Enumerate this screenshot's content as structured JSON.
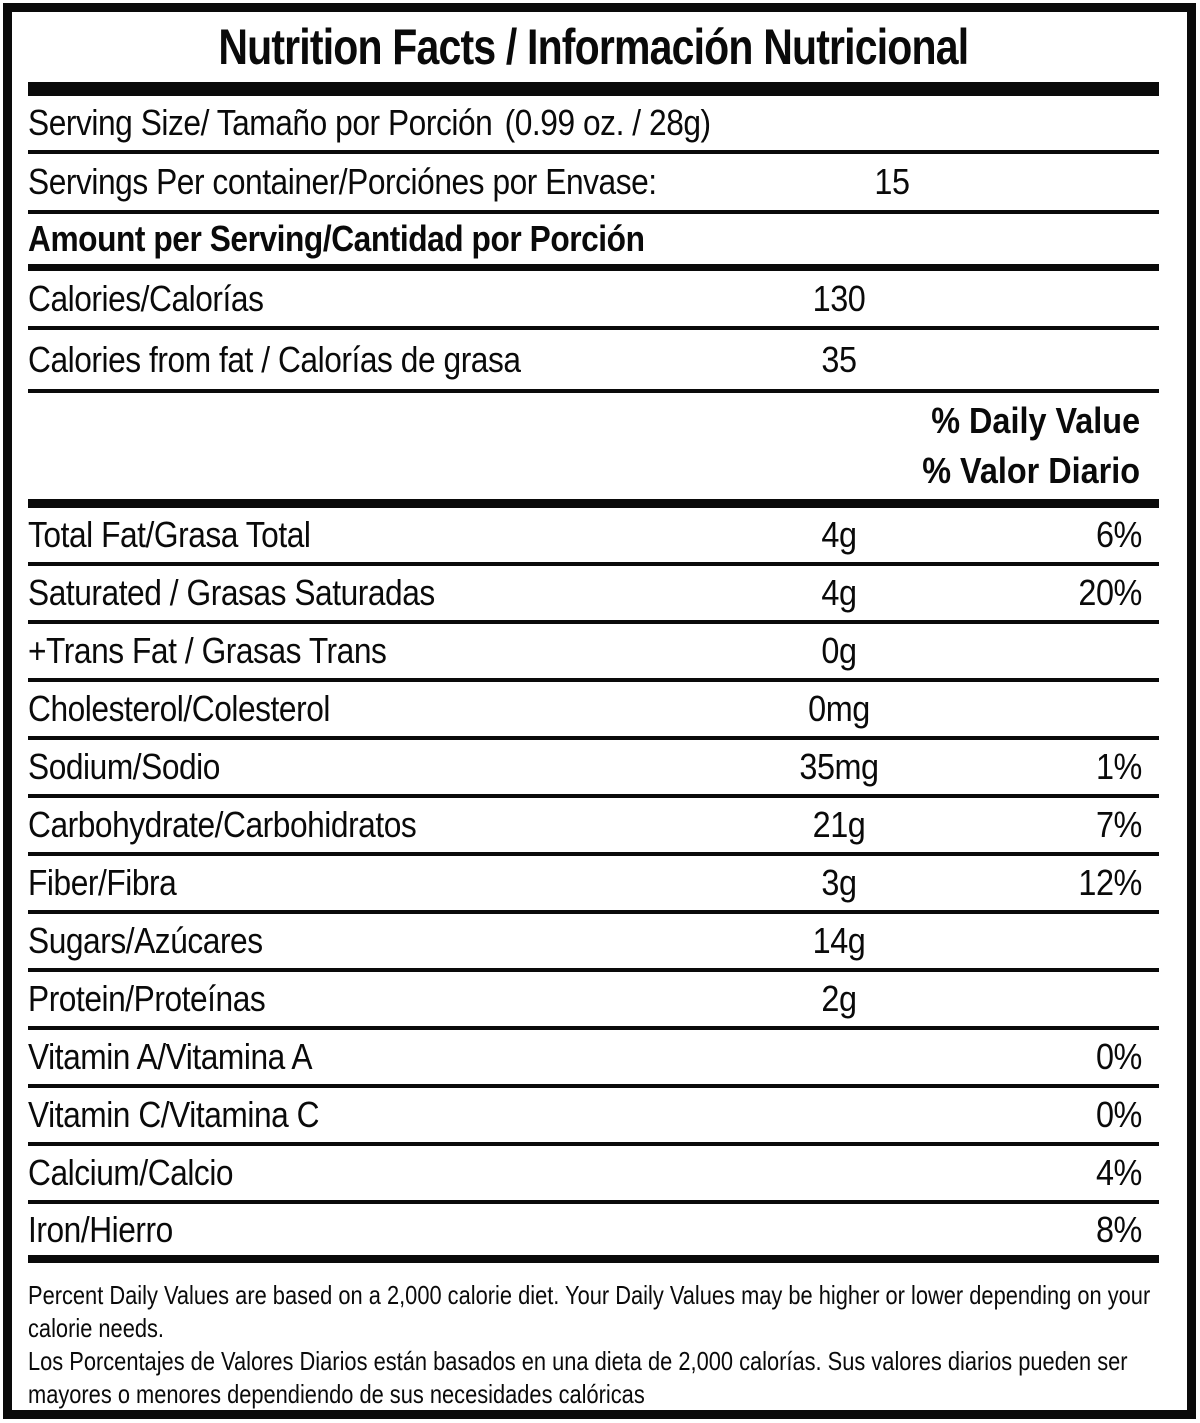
{
  "colors": {
    "ink": "#0a0a0a",
    "paper": "#ffffff"
  },
  "title": "Nutrition Facts / Información Nutricional",
  "serving_size": {
    "label": "Serving Size/ Tamaño por Porción",
    "value": "(0.99 oz. / 28g)"
  },
  "servings_per_container": {
    "label": "Servings Per container/Porciónes por Envase:",
    "value": "15"
  },
  "amount_per_serving": "Amount per Serving/Cantidad por Porción",
  "calories": {
    "label": "Calories/Calorías",
    "value": "130"
  },
  "calories_from_fat": {
    "label": "Calories from fat / Calorías de grasa",
    "value": "35"
  },
  "daily_value_header": {
    "line1": "% Daily Value",
    "line2": "% Valor Diario"
  },
  "nutrients": [
    {
      "label": "Total Fat/Grasa Total",
      "amount": "4g",
      "dv": "6%"
    },
    {
      "label": "Saturated / Grasas Saturadas",
      "amount": "4g",
      "dv": "20%"
    },
    {
      "label": "+Trans Fat / Grasas Trans",
      "amount": "0g",
      "dv": ""
    },
    {
      "label": "Cholesterol/Colesterol",
      "amount": "0mg",
      "dv": ""
    },
    {
      "label": "Sodium/Sodio",
      "amount": "35mg",
      "dv": "1%"
    },
    {
      "label": "Carbohydrate/Carbohidratos",
      "amount": "21g",
      "dv": "7%"
    },
    {
      "label": "Fiber/Fibra",
      "amount": "3g",
      "dv": "12%"
    },
    {
      "label": "Sugars/Azúcares",
      "amount": "14g",
      "dv": ""
    },
    {
      "label": "Protein/Proteínas",
      "amount": "2g",
      "dv": ""
    },
    {
      "label": "Vitamin A/Vitamina A",
      "amount": "",
      "dv": "0%"
    },
    {
      "label": "Vitamin C/Vitamina C",
      "amount": "",
      "dv": "0%"
    },
    {
      "label": "Calcium/Calcio",
      "amount": "",
      "dv": "4%"
    },
    {
      "label": "Iron/Hierro",
      "amount": "",
      "dv": "8%"
    }
  ],
  "footnote": {
    "en_lines": [
      "Percent Daily Values are based on a 2,000 calorie diet. Your Daily Values may be higher or lower depending on your",
      "calorie needs."
    ],
    "es_lines": [
      "Los Porcentajes de Valores Diarios están basados en una dieta de 2,000 calorías. Sus valores diarios pueden ser",
      "mayores o menores dependiendo de sus necesidades calóricas"
    ]
  }
}
